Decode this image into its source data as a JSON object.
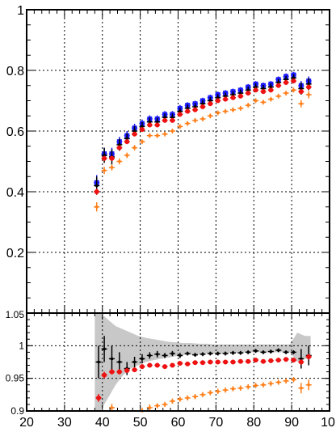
{
  "chart_data": [
    {
      "type": "scatter",
      "panel": "top",
      "xlim": [
        20,
        100
      ],
      "ylim": [
        0,
        1
      ],
      "grid": true,
      "yticks": [
        "0.2",
        "0.4",
        "0.6",
        "0.8",
        "1"
      ],
      "series": [
        {
          "color": "#1a1aff",
          "marker": "square",
          "x": [
            38.5,
            40.5,
            42.5,
            44.5,
            46.5,
            48.5,
            50.5,
            52.5,
            54.5,
            56.5,
            58.5,
            60.5,
            62.5,
            64.5,
            66.5,
            68.5,
            70.5,
            72.5,
            74.5,
            76.5,
            78.5,
            80.5,
            82.5,
            84.5,
            86.5,
            88.5,
            90.5,
            92.5,
            94.5
          ],
          "y": [
            0.43,
            0.525,
            0.525,
            0.565,
            0.585,
            0.61,
            0.625,
            0.64,
            0.64,
            0.655,
            0.655,
            0.675,
            0.685,
            0.69,
            0.7,
            0.71,
            0.72,
            0.725,
            0.73,
            0.735,
            0.745,
            0.755,
            0.75,
            0.755,
            0.77,
            0.78,
            0.785,
            0.75,
            0.765
          ],
          "yerr": [
            0.025,
            0.02,
            0.02,
            0.016,
            0.015,
            0.014,
            0.013,
            0.012,
            0.012,
            0.011,
            0.011,
            0.011,
            0.01,
            0.01,
            0.01,
            0.01,
            0.01,
            0.01,
            0.01,
            0.01,
            0.01,
            0.01,
            0.01,
            0.01,
            0.01,
            0.01,
            0.01,
            0.015,
            0.015
          ]
        },
        {
          "color": "#000000",
          "marker": "cross",
          "x": [
            38.5,
            40.5,
            42.5,
            44.5,
            46.5,
            48.5,
            50.5,
            52.5,
            54.5,
            56.5,
            58.5,
            60.5,
            62.5,
            64.5,
            66.5,
            68.5,
            70.5,
            72.5,
            74.5,
            76.5,
            78.5,
            80.5,
            82.5,
            84.5,
            86.5,
            88.5,
            90.5,
            92.5,
            94.5
          ],
          "y": [
            0.42,
            0.52,
            0.515,
            0.555,
            0.575,
            0.6,
            0.615,
            0.63,
            0.63,
            0.645,
            0.645,
            0.665,
            0.675,
            0.68,
            0.69,
            0.7,
            0.71,
            0.715,
            0.72,
            0.725,
            0.735,
            0.745,
            0.74,
            0.745,
            0.76,
            0.77,
            0.775,
            0.74,
            0.755
          ],
          "yerr": [
            0.03,
            0.025,
            0.025,
            0.02,
            0.018,
            0.016,
            0.015,
            0.014,
            0.014,
            0.013,
            0.013,
            0.012,
            0.012,
            0.012,
            0.012,
            0.012,
            0.012,
            0.012,
            0.012,
            0.012,
            0.012,
            0.012,
            0.012,
            0.012,
            0.012,
            0.012,
            0.012,
            0.02,
            0.02
          ]
        },
        {
          "color": "#ee1111",
          "marker": "circle",
          "x": [
            38.5,
            40.5,
            42.5,
            44.5,
            46.5,
            48.5,
            50.5,
            52.5,
            54.5,
            56.5,
            58.5,
            60.5,
            62.5,
            64.5,
            66.5,
            68.5,
            70.5,
            72.5,
            74.5,
            76.5,
            78.5,
            80.5,
            82.5,
            84.5,
            86.5,
            88.5,
            90.5,
            92.5,
            94.5
          ],
          "y": [
            0.4,
            0.51,
            0.51,
            0.545,
            0.565,
            0.59,
            0.605,
            0.62,
            0.62,
            0.635,
            0.635,
            0.655,
            0.665,
            0.67,
            0.68,
            0.69,
            0.7,
            0.705,
            0.71,
            0.715,
            0.725,
            0.735,
            0.73,
            0.735,
            0.75,
            0.76,
            0.765,
            0.73,
            0.745
          ],
          "yerr": [
            0.01,
            0.008,
            0.008,
            0.007,
            0.006,
            0.006,
            0.006,
            0.005,
            0.005,
            0.005,
            0.005,
            0.005,
            0.005,
            0.005,
            0.005,
            0.005,
            0.005,
            0.005,
            0.005,
            0.005,
            0.005,
            0.005,
            0.005,
            0.005,
            0.005,
            0.005,
            0.005,
            0.006,
            0.006
          ]
        },
        {
          "color": "#ff7f1a",
          "marker": "cross",
          "x": [
            38.5,
            40.5,
            42.5,
            44.5,
            46.5,
            48.5,
            50.5,
            52.5,
            54.5,
            56.5,
            58.5,
            60.5,
            62.5,
            64.5,
            66.5,
            68.5,
            70.5,
            72.5,
            74.5,
            76.5,
            78.5,
            80.5,
            82.5,
            84.5,
            86.5,
            88.5,
            90.5,
            92.5,
            94.5
          ],
          "y": [
            0.35,
            0.47,
            0.48,
            0.5,
            0.52,
            0.545,
            0.565,
            0.585,
            0.585,
            0.59,
            0.6,
            0.615,
            0.625,
            0.635,
            0.64,
            0.65,
            0.66,
            0.665,
            0.67,
            0.675,
            0.685,
            0.7,
            0.695,
            0.705,
            0.715,
            0.725,
            0.735,
            0.69,
            0.72
          ],
          "yerr": [
            0.015,
            0.012,
            0.01,
            0.01,
            0.009,
            0.009,
            0.008,
            0.008,
            0.008,
            0.008,
            0.008,
            0.008,
            0.008,
            0.008,
            0.008,
            0.008,
            0.008,
            0.008,
            0.008,
            0.008,
            0.008,
            0.008,
            0.008,
            0.008,
            0.008,
            0.008,
            0.008,
            0.012,
            0.012
          ]
        }
      ]
    },
    {
      "type": "scatter",
      "panel": "bottom",
      "xlim": [
        20,
        100
      ],
      "ylim": [
        0.9,
        1.05
      ],
      "grid": true,
      "yticks": [
        "0.9",
        "0.95",
        "1",
        "1.05"
      ],
      "xticks": [
        "20",
        "30",
        "40",
        "50",
        "60",
        "70",
        "80",
        "90",
        "10"
      ],
      "band": {
        "color": "#c8c8c8",
        "x": [
          38.0,
          39.5,
          41.5,
          43.5,
          45.5,
          47.5,
          49.5,
          51.5,
          53.5,
          55.5,
          57.5,
          59.5,
          61.5,
          63.5,
          65.5,
          67.5,
          69.5,
          71.5,
          73.5,
          75.5,
          77.5,
          79.5,
          81.5,
          83.5,
          85.5,
          87.5,
          89.5,
          91.5,
          93.5,
          95.0
        ],
        "low": [
          0.9,
          0.9,
          0.92,
          0.94,
          0.955,
          0.965,
          0.97,
          0.975,
          0.978,
          0.98,
          0.982,
          0.984,
          0.986,
          0.986,
          0.987,
          0.988,
          0.988,
          0.988,
          0.989,
          0.989,
          0.99,
          0.99,
          0.99,
          0.99,
          0.99,
          0.99,
          0.99,
          0.975,
          0.98,
          0.98
        ],
        "high": [
          1.05,
          1.05,
          1.04,
          1.03,
          1.025,
          1.02,
          1.015,
          1.012,
          1.01,
          1.008,
          1.006,
          1.005,
          1.004,
          1.004,
          1.003,
          1.003,
          1.002,
          1.002,
          1.002,
          1.002,
          1.002,
          1.002,
          1.002,
          1.002,
          1.002,
          1.002,
          1.002,
          1.02,
          1.015,
          1.015
        ]
      },
      "series": [
        {
          "color": "#000000",
          "marker": "cross",
          "x": [
            39,
            40.5,
            42.5,
            44.5,
            46.5,
            48.5,
            50.5,
            52.5,
            54.5,
            56.5,
            58.5,
            60.5,
            62.5,
            64.5,
            66.5,
            68.5,
            70.5,
            72.5,
            74.5,
            76.5,
            78.5,
            80.5,
            82.5,
            84.5,
            86.5,
            88.5,
            90.5,
            92.5,
            94.5
          ],
          "y": [
            0.975,
            0.995,
            0.98,
            0.975,
            0.965,
            0.975,
            0.98,
            0.985,
            0.987,
            0.985,
            0.988,
            0.985,
            0.988,
            0.986,
            0.987,
            0.988,
            0.988,
            0.988,
            0.989,
            0.989,
            0.99,
            0.992,
            0.99,
            0.991,
            0.993,
            0.99,
            0.99,
            0.98,
            0.985
          ],
          "yerr": [
            0.025,
            0.02,
            0.02,
            0.015,
            0.01,
            0.008,
            0.007,
            0.005,
            0.005,
            0.004,
            0.004,
            0.004,
            0.003,
            0.003,
            0.003,
            0.003,
            0.003,
            0.003,
            0.003,
            0.003,
            0.003,
            0.003,
            0.003,
            0.003,
            0.003,
            0.003,
            0.003,
            0.015,
            0.015
          ]
        },
        {
          "color": "#ee1111",
          "marker": "circle",
          "x": [
            39,
            40.5,
            42.5,
            44.5,
            46.5,
            48.5,
            50.5,
            52.5,
            54.5,
            56.5,
            58.5,
            60.5,
            62.5,
            64.5,
            66.5,
            68.5,
            70.5,
            72.5,
            74.5,
            76.5,
            78.5,
            80.5,
            82.5,
            84.5,
            86.5,
            88.5,
            90.5,
            92.5,
            94.5
          ],
          "y": [
            0.92,
            0.955,
            0.96,
            0.96,
            0.962,
            0.963,
            0.968,
            0.97,
            0.97,
            0.968,
            0.97,
            0.973,
            0.972,
            0.974,
            0.974,
            0.975,
            0.975,
            0.975,
            0.975,
            0.976,
            0.976,
            0.978,
            0.976,
            0.977,
            0.978,
            0.979,
            0.978,
            0.975,
            0.983
          ],
          "yerr": [
            0.006,
            0.005,
            0.004,
            0.004,
            0.003,
            0.003,
            0.003,
            0.003,
            0.003,
            0.003,
            0.003,
            0.003,
            0.003,
            0.003,
            0.003,
            0.003,
            0.003,
            0.003,
            0.003,
            0.003,
            0.003,
            0.003,
            0.003,
            0.003,
            0.003,
            0.003,
            0.003,
            0.004,
            0.004
          ]
        },
        {
          "color": "#ff7f1a",
          "marker": "cross",
          "x": [
            39,
            40.5,
            42.5,
            44.5,
            46.5,
            48.5,
            50.5,
            52.5,
            54.5,
            56.5,
            58.5,
            60.5,
            62.5,
            64.5,
            66.5,
            68.5,
            70.5,
            72.5,
            74.5,
            76.5,
            78.5,
            80.5,
            82.5,
            84.5,
            86.5,
            88.5,
            90.5,
            92.5,
            94.5
          ],
          "y": [
            0.875,
            0.888,
            0.905,
            0.885,
            0.89,
            0.893,
            0.9,
            0.905,
            0.908,
            0.91,
            0.915,
            0.918,
            0.92,
            0.922,
            0.925,
            0.928,
            0.93,
            0.932,
            0.934,
            0.935,
            0.937,
            0.939,
            0.94,
            0.942,
            0.944,
            0.946,
            0.948,
            0.935,
            0.94
          ],
          "yerr": [
            0.01,
            0.008,
            0.006,
            0.006,
            0.005,
            0.005,
            0.005,
            0.005,
            0.004,
            0.004,
            0.004,
            0.004,
            0.004,
            0.004,
            0.004,
            0.004,
            0.004,
            0.004,
            0.004,
            0.004,
            0.004,
            0.004,
            0.004,
            0.004,
            0.004,
            0.004,
            0.004,
            0.008,
            0.008
          ]
        }
      ]
    }
  ]
}
